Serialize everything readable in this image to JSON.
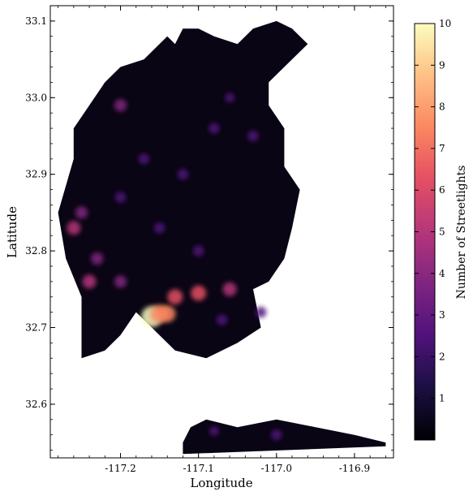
{
  "chart_data": {
    "type": "heatmap",
    "title": "",
    "xlabel": "Longitude",
    "ylabel": "Latitude",
    "xlim": [
      -117.29,
      -116.85
    ],
    "ylim": [
      32.53,
      33.12
    ],
    "x_ticks": [
      -117.2,
      -117.1,
      -117.0,
      -116.9
    ],
    "x_tick_labels": [
      "-117.2",
      "-117.1",
      "-117.0",
      "-116.9"
    ],
    "y_ticks": [
      32.6,
      32.7,
      32.8,
      32.9,
      33.0,
      33.1
    ],
    "y_tick_labels": [
      "32.6",
      "32.7",
      "32.8",
      "32.9",
      "33.0",
      "33.1"
    ],
    "colorbar": {
      "label": "Number of Streetlights",
      "colormap": "magma",
      "range": [
        0,
        10
      ],
      "ticks": [
        1,
        2,
        3,
        4,
        5,
        6,
        7,
        8,
        9,
        10
      ],
      "tick_labels": [
        "1",
        "2",
        "3",
        "4",
        "5",
        "6",
        "7",
        "8",
        "9",
        "10"
      ]
    },
    "region_outline_main": [
      [
        -117.14,
        33.08
      ],
      [
        -117.13,
        33.07
      ],
      [
        -117.12,
        33.09
      ],
      [
        -117.1,
        33.09
      ],
      [
        -117.08,
        33.08
      ],
      [
        -117.05,
        33.07
      ],
      [
        -117.03,
        33.09
      ],
      [
        -117.0,
        33.1
      ],
      [
        -116.98,
        33.09
      ],
      [
        -116.96,
        33.07
      ],
      [
        -116.99,
        33.04
      ],
      [
        -117.01,
        33.02
      ],
      [
        -117.01,
        32.99
      ],
      [
        -116.99,
        32.96
      ],
      [
        -116.99,
        32.91
      ],
      [
        -116.97,
        32.88
      ],
      [
        -116.98,
        32.83
      ],
      [
        -116.99,
        32.79
      ],
      [
        -117.01,
        32.76
      ],
      [
        -117.03,
        32.75
      ],
      [
        -117.02,
        32.7
      ],
      [
        -117.05,
        32.68
      ],
      [
        -117.09,
        32.66
      ],
      [
        -117.13,
        32.67
      ],
      [
        -117.16,
        32.7
      ],
      [
        -117.18,
        32.72
      ],
      [
        -117.2,
        32.69
      ],
      [
        -117.22,
        32.67
      ],
      [
        -117.25,
        32.66
      ],
      [
        -117.25,
        32.74
      ],
      [
        -117.27,
        32.79
      ],
      [
        -117.28,
        32.85
      ],
      [
        -117.26,
        32.92
      ],
      [
        -117.26,
        32.96
      ],
      [
        -117.24,
        32.99
      ],
      [
        -117.22,
        33.02
      ],
      [
        -117.2,
        33.04
      ],
      [
        -117.17,
        33.05
      ]
    ],
    "region_outline_south": [
      [
        -117.12,
        32.55
      ],
      [
        -117.11,
        32.57
      ],
      [
        -117.09,
        32.58
      ],
      [
        -117.05,
        32.57
      ],
      [
        -117.0,
        32.58
      ],
      [
        -116.95,
        32.57
      ],
      [
        -116.9,
        32.56
      ],
      [
        -116.86,
        32.55
      ],
      [
        -116.86,
        32.545
      ],
      [
        -117.12,
        32.535
      ]
    ],
    "hotspots": [
      {
        "lon": -117.16,
        "lat": 32.714,
        "value": 10
      },
      {
        "lon": -117.15,
        "lat": 32.718,
        "value": 8
      },
      {
        "lon": -117.14,
        "lat": 32.718,
        "value": 7
      },
      {
        "lon": -117.13,
        "lat": 32.74,
        "value": 6
      },
      {
        "lon": -117.1,
        "lat": 32.745,
        "value": 6
      },
      {
        "lon": -117.06,
        "lat": 32.75,
        "value": 5
      },
      {
        "lon": -117.26,
        "lat": 32.83,
        "value": 5
      },
      {
        "lon": -117.23,
        "lat": 32.79,
        "value": 4
      },
      {
        "lon": -117.2,
        "lat": 32.76,
        "value": 4
      },
      {
        "lon": -117.24,
        "lat": 32.76,
        "value": 5
      },
      {
        "lon": -117.25,
        "lat": 32.85,
        "value": 4
      },
      {
        "lon": -117.2,
        "lat": 32.99,
        "value": 4
      },
      {
        "lon": -117.17,
        "lat": 32.92,
        "value": 3
      },
      {
        "lon": -117.12,
        "lat": 32.9,
        "value": 3
      },
      {
        "lon": -117.08,
        "lat": 32.96,
        "value": 3
      },
      {
        "lon": -117.03,
        "lat": 32.95,
        "value": 3
      },
      {
        "lon": -117.15,
        "lat": 32.83,
        "value": 3
      },
      {
        "lon": -117.1,
        "lat": 32.8,
        "value": 3
      },
      {
        "lon": -117.07,
        "lat": 32.71,
        "value": 3
      },
      {
        "lon": -117.02,
        "lat": 32.72,
        "value": 3
      },
      {
        "lon": -117.2,
        "lat": 32.87,
        "value": 3
      },
      {
        "lon": -117.06,
        "lat": 33.0,
        "value": 2
      },
      {
        "lon": -117.0,
        "lat": 32.56,
        "value": 3
      },
      {
        "lon": -117.08,
        "lat": 32.565,
        "value": 2
      }
    ]
  }
}
